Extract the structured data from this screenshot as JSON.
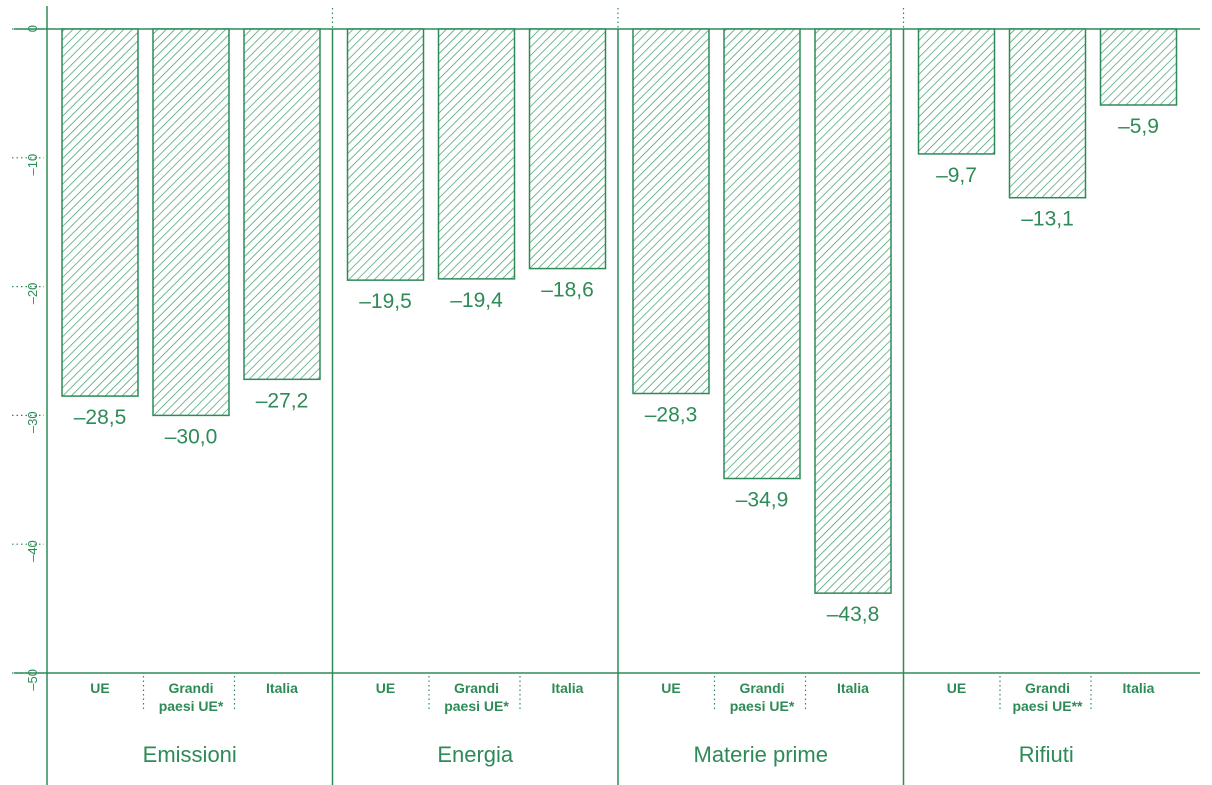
{
  "chart_data": {
    "type": "bar",
    "title": "",
    "xlabel": "",
    "ylabel": "",
    "ylim": [
      -50,
      0
    ],
    "yticks": [
      0,
      -10,
      -20,
      -30,
      -40,
      -50
    ],
    "ytick_labels": [
      "0",
      "–10",
      "–20",
      "–30",
      "–40",
      "–50"
    ],
    "colors": {
      "accent": "#2e8b57",
      "hatch": "#3a9a6a"
    },
    "groups": [
      {
        "name": "Emissioni",
        "bars": [
          {
            "label": [
              "UE"
            ],
            "value": -28.5,
            "value_label": "–28,5"
          },
          {
            "label": [
              "Grandi",
              "paesi UE*"
            ],
            "value": -30.0,
            "value_label": "–30,0"
          },
          {
            "label": [
              "Italia"
            ],
            "value": -27.2,
            "value_label": "–27,2"
          }
        ]
      },
      {
        "name": "Energia",
        "bars": [
          {
            "label": [
              "UE"
            ],
            "value": -19.5,
            "value_label": "–19,5"
          },
          {
            "label": [
              "Grandi",
              "paesi UE*"
            ],
            "value": -19.4,
            "value_label": "–19,4"
          },
          {
            "label": [
              "Italia"
            ],
            "value": -18.6,
            "value_label": "–18,6"
          }
        ]
      },
      {
        "name": "Materie prime",
        "bars": [
          {
            "label": [
              "UE"
            ],
            "value": -28.3,
            "value_label": "–28,3"
          },
          {
            "label": [
              "Grandi",
              "paesi UE*"
            ],
            "value": -34.9,
            "value_label": "–34,9"
          },
          {
            "label": [
              "Italia"
            ],
            "value": -43.8,
            "value_label": "–43,8"
          }
        ]
      },
      {
        "name": "Rifiuti",
        "bars": [
          {
            "label": [
              "UE"
            ],
            "value": -9.7,
            "value_label": "–9,7"
          },
          {
            "label": [
              "Grandi",
              "paesi UE**"
            ],
            "value": -13.1,
            "value_label": "–13,1"
          },
          {
            "label": [
              "Italia"
            ],
            "value": -5.9,
            "value_label": "–5,9"
          }
        ]
      }
    ]
  }
}
